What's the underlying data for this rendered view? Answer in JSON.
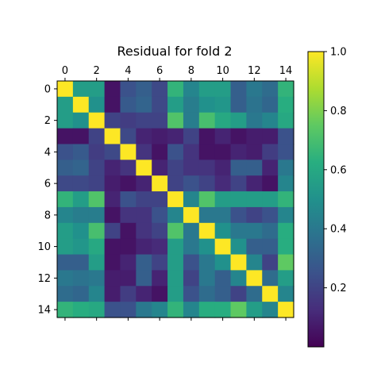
{
  "chart_data": {
    "type": "heatmap",
    "title": "Residual for fold 2",
    "xlabel": "",
    "ylabel": "",
    "x_ticks": [
      "0",
      "2",
      "4",
      "6",
      "8",
      "10",
      "12",
      "14"
    ],
    "y_ticks": [
      "0",
      "2",
      "4",
      "6",
      "8",
      "10",
      "12",
      "14"
    ],
    "colormap": "viridis",
    "color_range": [
      0.0,
      1.0
    ],
    "colorbar_ticks": [
      "0.2",
      "0.4",
      "0.6",
      "0.8",
      "1.0"
    ],
    "colorbar_tick_values": [
      0.2,
      0.4,
      0.6,
      0.8,
      1.0
    ],
    "values": [
      [
        1.0,
        0.55,
        0.55,
        0.05,
        0.25,
        0.3,
        0.22,
        0.65,
        0.45,
        0.55,
        0.55,
        0.3,
        0.4,
        0.35,
        0.65
      ],
      [
        0.55,
        1.0,
        0.5,
        0.05,
        0.28,
        0.32,
        0.22,
        0.55,
        0.42,
        0.5,
        0.52,
        0.3,
        0.38,
        0.33,
        0.62
      ],
      [
        0.55,
        0.5,
        1.0,
        0.2,
        0.18,
        0.2,
        0.2,
        0.72,
        0.42,
        0.7,
        0.6,
        0.55,
        0.4,
        0.45,
        0.6
      ],
      [
        0.05,
        0.05,
        0.2,
        1.0,
        0.22,
        0.1,
        0.08,
        0.1,
        0.2,
        0.05,
        0.1,
        0.05,
        0.08,
        0.08,
        0.25
      ],
      [
        0.25,
        0.28,
        0.18,
        0.22,
        1.0,
        0.15,
        0.05,
        0.25,
        0.15,
        0.05,
        0.05,
        0.1,
        0.08,
        0.18,
        0.25
      ],
      [
        0.3,
        0.32,
        0.2,
        0.1,
        0.15,
        1.0,
        0.1,
        0.2,
        0.15,
        0.15,
        0.1,
        0.3,
        0.3,
        0.1,
        0.4
      ],
      [
        0.22,
        0.22,
        0.2,
        0.08,
        0.05,
        0.1,
        1.0,
        0.2,
        0.25,
        0.2,
        0.12,
        0.2,
        0.1,
        0.05,
        0.45
      ],
      [
        0.65,
        0.55,
        0.72,
        0.1,
        0.25,
        0.2,
        0.2,
        1.0,
        0.45,
        0.72,
        0.55,
        0.55,
        0.55,
        0.55,
        0.65
      ],
      [
        0.45,
        0.42,
        0.42,
        0.05,
        0.15,
        0.15,
        0.25,
        0.45,
        1.0,
        0.4,
        0.4,
        0.25,
        0.2,
        0.25,
        0.45
      ],
      [
        0.55,
        0.5,
        0.7,
        0.2,
        0.05,
        0.15,
        0.2,
        0.72,
        0.4,
        1.0,
        0.5,
        0.4,
        0.4,
        0.35,
        0.62
      ],
      [
        0.55,
        0.52,
        0.6,
        0.05,
        0.05,
        0.1,
        0.12,
        0.55,
        0.4,
        0.5,
        1.0,
        0.5,
        0.3,
        0.3,
        0.62
      ],
      [
        0.3,
        0.3,
        0.55,
        0.05,
        0.1,
        0.3,
        0.2,
        0.55,
        0.25,
        0.4,
        0.5,
        1.0,
        0.45,
        0.2,
        0.75
      ],
      [
        0.4,
        0.38,
        0.4,
        0.08,
        0.08,
        0.3,
        0.1,
        0.55,
        0.2,
        0.4,
        0.3,
        0.45,
        1.0,
        0.35,
        0.55
      ],
      [
        0.35,
        0.33,
        0.45,
        0.08,
        0.18,
        0.1,
        0.05,
        0.55,
        0.25,
        0.35,
        0.3,
        0.2,
        0.35,
        1.0,
        0.45
      ],
      [
        0.65,
        0.62,
        0.6,
        0.25,
        0.25,
        0.4,
        0.45,
        0.65,
        0.45,
        0.62,
        0.62,
        0.75,
        0.55,
        0.45,
        1.0
      ]
    ]
  }
}
